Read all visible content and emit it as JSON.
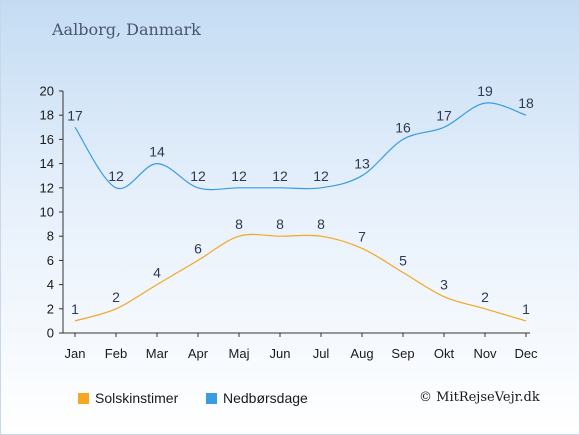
{
  "header": {
    "title": "Aalborg, Danmark"
  },
  "footer": {
    "credit": "© MitRejseVejr.dk"
  },
  "chart_data": {
    "type": "line",
    "title": "Aalborg, Danmark",
    "xlabel": "",
    "ylabel": "",
    "categories": [
      "Jan",
      "Feb",
      "Mar",
      "Apr",
      "Maj",
      "Jun",
      "Jul",
      "Aug",
      "Sep",
      "Okt",
      "Nov",
      "Dec"
    ],
    "ylim": [
      0,
      20
    ],
    "yticks": [
      0,
      2,
      4,
      6,
      8,
      10,
      12,
      14,
      16,
      18,
      20
    ],
    "grid": false,
    "legend_position": "bottom-left",
    "series": [
      {
        "name": "Solskinstimer",
        "color": "#f5a623",
        "values": [
          1,
          2,
          4,
          6,
          8,
          8,
          8,
          7,
          5,
          3,
          2,
          1
        ]
      },
      {
        "name": "Nedbørsdage",
        "color": "#3a9be0",
        "values": [
          17,
          12,
          14,
          12,
          12,
          12,
          12,
          13,
          16,
          17,
          19,
          18
        ]
      }
    ]
  }
}
